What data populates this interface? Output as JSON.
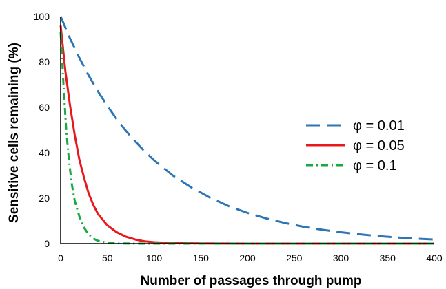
{
  "chart_data": {
    "type": "line",
    "title": "",
    "xlabel": "Number of passages through pump",
    "ylabel": "Sensitive cells remaining (%)",
    "xlim": [
      0,
      400
    ],
    "ylim": [
      0,
      100
    ],
    "x_ticks": [
      0,
      50,
      100,
      150,
      200,
      250,
      300,
      350,
      400
    ],
    "y_ticks": [
      0,
      20,
      40,
      60,
      80,
      100
    ],
    "grid": false,
    "legend_position": "right",
    "series": [
      {
        "name": "φ = 0.01",
        "color": "#2e75b6",
        "dash": "dashed",
        "x": [
          0,
          10,
          20,
          30,
          40,
          50,
          60,
          70,
          80,
          90,
          100,
          120,
          140,
          160,
          180,
          200,
          220,
          240,
          260,
          280,
          300,
          320,
          340,
          360,
          380,
          400
        ],
        "values": [
          100,
          90.4,
          81.8,
          74.0,
          67.0,
          60.6,
          54.8,
          49.6,
          44.9,
          40.6,
          36.7,
          30.0,
          24.7,
          20.2,
          16.5,
          13.5,
          11.1,
          9.1,
          7.4,
          6.1,
          5.0,
          4.1,
          3.3,
          2.7,
          2.2,
          1.8
        ]
      },
      {
        "name": "φ = 0.05",
        "color": "#e8191c",
        "dash": "solid",
        "x": [
          0,
          5,
          10,
          15,
          20,
          25,
          30,
          35,
          40,
          50,
          60,
          70,
          80,
          90,
          100,
          120,
          150,
          200,
          250,
          300,
          350,
          400
        ],
        "values": [
          96,
          76,
          61,
          48,
          37,
          29,
          22,
          17,
          13,
          8,
          5,
          3,
          1.8,
          1.0,
          0.6,
          0.2,
          0.05,
          0,
          0,
          0,
          0,
          0
        ]
      },
      {
        "name": "φ = 0.1",
        "color": "#1aa847",
        "dash": "dashdot",
        "x": [
          0,
          3,
          6,
          9,
          12,
          15,
          20,
          25,
          30,
          35,
          40,
          50,
          60,
          80,
          100,
          150,
          200,
          300,
          400
        ],
        "values": [
          93,
          70,
          50,
          36,
          26,
          19,
          12,
          7,
          4,
          2.2,
          1.2,
          0.4,
          0.1,
          0,
          0,
          0,
          0,
          0,
          0
        ]
      }
    ]
  }
}
